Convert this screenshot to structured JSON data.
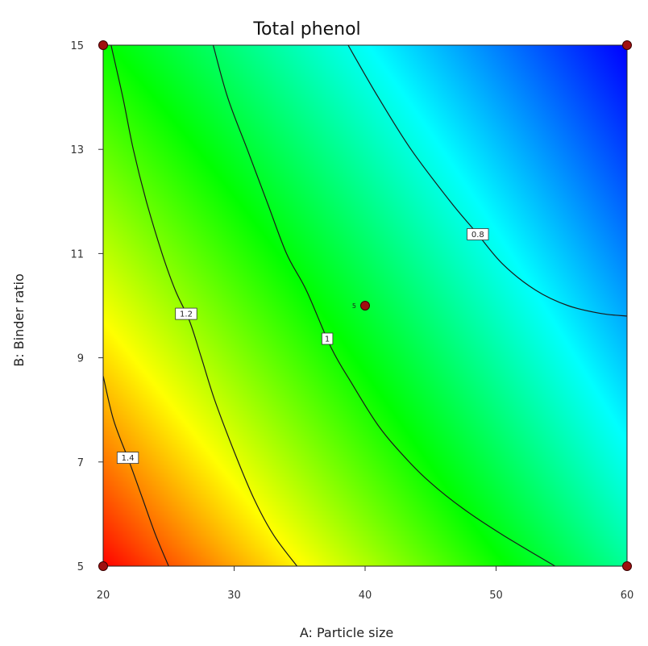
{
  "chart_data": {
    "type": "contour",
    "title": "Total phenol",
    "xlabel": "A: Particle size",
    "ylabel": "B: Binder ratio",
    "xlim": [
      20,
      60
    ],
    "ylim": [
      5,
      15
    ],
    "x_ticks": [
      "20",
      "30",
      "40",
      "50",
      "60"
    ],
    "y_ticks": [
      "5",
      "7",
      "9",
      "11",
      "13",
      "15"
    ],
    "colormap": [
      "#0000ff",
      "#00ffff",
      "#00ff00",
      "#ffff00",
      "#ff0000"
    ],
    "grid": false,
    "contours": [
      {
        "label": "0.8",
        "points": [
          [
            38.7,
            15
          ],
          [
            41,
            14
          ],
          [
            43.5,
            13
          ],
          [
            46.5,
            12
          ],
          [
            48.5,
            11.4
          ],
          [
            50.5,
            10.8
          ],
          [
            53,
            10.3
          ],
          [
            55.5,
            10
          ],
          [
            58,
            9.85
          ],
          [
            60,
            9.8
          ]
        ]
      },
      {
        "label": "1",
        "points": [
          [
            28.4,
            15
          ],
          [
            29.5,
            14
          ],
          [
            31,
            13
          ],
          [
            32.5,
            12
          ],
          [
            34,
            11
          ],
          [
            35.5,
            10.3
          ],
          [
            37.4,
            9.2
          ],
          [
            39,
            8.5
          ],
          [
            41,
            7.7
          ],
          [
            43,
            7.1
          ],
          [
            45,
            6.6
          ],
          [
            47.5,
            6.1
          ],
          [
            50.5,
            5.6
          ],
          [
            54.5,
            5
          ]
        ]
      },
      {
        "label": "1.2",
        "points": [
          [
            20.6,
            15
          ],
          [
            21.5,
            14
          ],
          [
            22.3,
            13
          ],
          [
            23.3,
            12
          ],
          [
            24.5,
            11
          ],
          [
            25.5,
            10.3
          ],
          [
            26.6,
            9.7
          ],
          [
            27.5,
            9
          ],
          [
            28.5,
            8.2
          ],
          [
            30,
            7.2
          ],
          [
            31.5,
            6.3
          ],
          [
            33,
            5.6
          ],
          [
            34.8,
            5
          ]
        ]
      },
      {
        "label": "1.4",
        "points": [
          [
            20,
            8.65
          ],
          [
            20.8,
            7.8
          ],
          [
            22,
            7
          ],
          [
            23,
            6.3
          ],
          [
            24,
            5.6
          ],
          [
            25,
            5
          ]
        ]
      }
    ],
    "design_points": [
      {
        "A": 20,
        "B": 15
      },
      {
        "A": 60,
        "B": 15
      },
      {
        "A": 20,
        "B": 5
      },
      {
        "A": 60,
        "B": 5
      },
      {
        "A": 40,
        "B": 10,
        "label": "5"
      }
    ]
  }
}
